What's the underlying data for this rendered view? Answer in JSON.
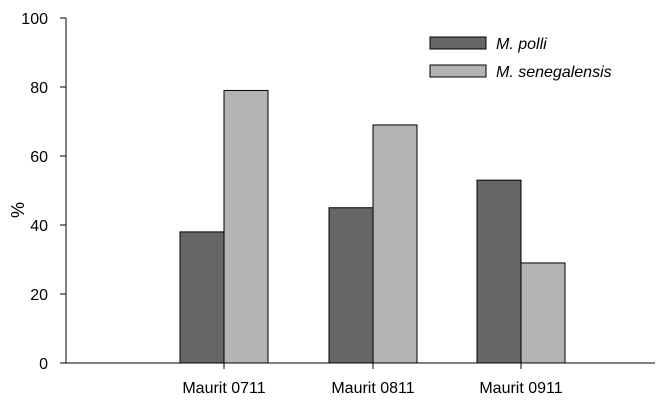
{
  "chart_data": {
    "type": "bar",
    "categories": [
      "Maurit 0711",
      "Maurit 0811",
      "Maurit 0911"
    ],
    "series": [
      {
        "name": "M. polli",
        "values": [
          38,
          45,
          53
        ],
        "color": "#666666"
      },
      {
        "name": "M. senegalensis",
        "values": [
          79,
          69,
          29
        ],
        "color": "#b3b3b3"
      }
    ],
    "ylabel": "%",
    "ylim": [
      0,
      100
    ],
    "yticks": [
      0,
      20,
      40,
      60,
      80,
      100
    ],
    "grid": false,
    "legend_position": "top-right"
  }
}
